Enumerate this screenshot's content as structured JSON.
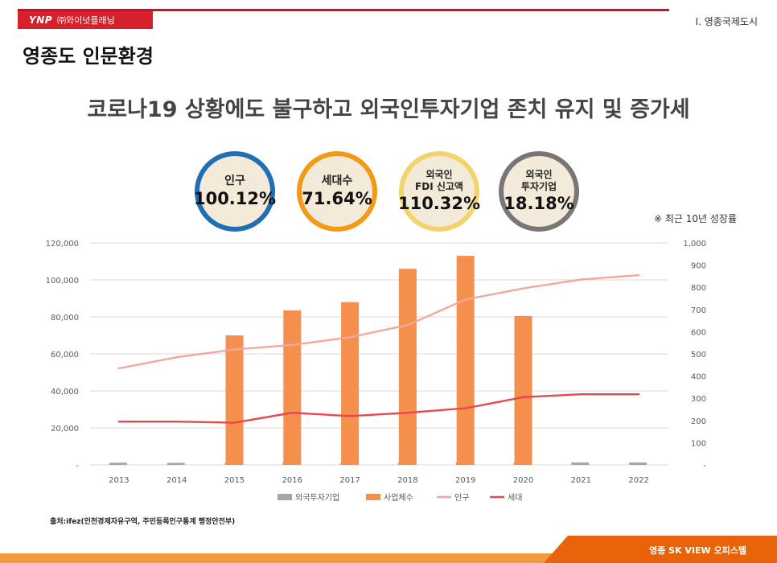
{
  "header": {
    "logo_mark": "YNP",
    "logo_name": "㈜와이넛플래닝",
    "section": "Ⅰ. 영종국제도시",
    "page_title": "영종도 인문환경",
    "headline": "코로나19 상황에도 불구하고 외국인투자기업 존치 유지 및 증가세"
  },
  "stats": [
    {
      "label_line1": "인구",
      "label_line2": "",
      "value": "100.12%",
      "color": "#1f6fb2"
    },
    {
      "label_line1": "세대수",
      "label_line2": "",
      "value": "71.64%",
      "color": "#f29a16"
    },
    {
      "label_line1": "외국인",
      "label_line2": "FDI 신고액",
      "value": "110.32%",
      "color": "#f3d36b"
    },
    {
      "label_line1": "외국인",
      "label_line2": "투자기업",
      "value": "18.18%",
      "color": "#7a7676"
    }
  ],
  "note": "※ 최근 10년 성장률",
  "chart_data": {
    "type": "bar",
    "categories": [
      "2013",
      "2014",
      "2015",
      "2016",
      "2017",
      "2018",
      "2019",
      "2020",
      "2021",
      "2022"
    ],
    "series": [
      {
        "name": "외국투자기업",
        "kind": "bar",
        "axis": "left",
        "color": "#a6a6a6",
        "values": [
          1200,
          1100,
          1150,
          1200,
          1150,
          1200,
          1250,
          1200,
          1300,
          1300
        ]
      },
      {
        "name": "사업체수",
        "kind": "bar",
        "axis": "left",
        "color": "#f58f4e",
        "values": [
          null,
          null,
          70000,
          83500,
          88000,
          106000,
          113000,
          80500,
          null,
          null
        ]
      },
      {
        "name": "인구",
        "kind": "line",
        "axis": "right",
        "color": "#f2a7a0",
        "values": [
          435,
          485,
          520,
          540,
          575,
          630,
          745,
          795,
          835,
          855
        ]
      },
      {
        "name": "세대",
        "kind": "line",
        "axis": "right",
        "color": "#e8474b",
        "values": [
          195,
          195,
          190,
          235,
          220,
          235,
          255,
          305,
          318,
          318
        ]
      }
    ],
    "left_axis": {
      "min": 0,
      "max": 120000,
      "ticks": [
        "-",
        "20,000",
        "40,000",
        "60,000",
        "80,000",
        "100,000",
        "120,000"
      ]
    },
    "right_axis": {
      "min": 0,
      "max": 1000,
      "ticks": [
        "-",
        "100",
        "200",
        "300",
        "400",
        "500",
        "600",
        "700",
        "800",
        "900",
        "1,000"
      ]
    },
    "grid": true,
    "legend_position": "bottom"
  },
  "source": "출처:ifez(인천경제자유구역, 주민등록인구통계 행정안전부)",
  "footer": "영종 SK VIEW 오피스텔"
}
